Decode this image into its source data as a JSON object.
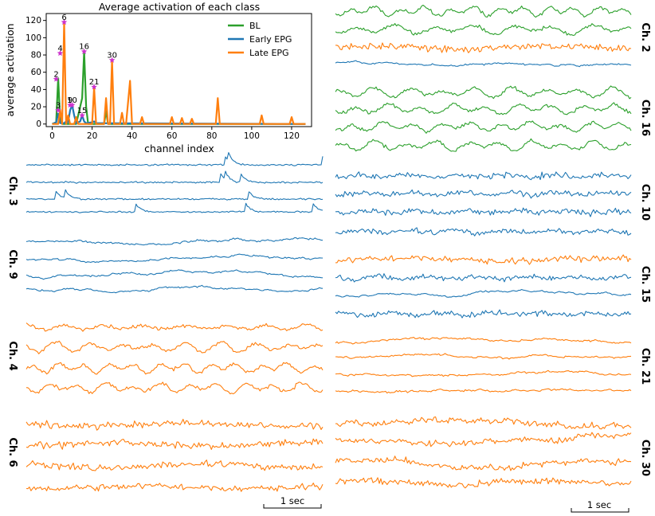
{
  "chart_data": [
    {
      "type": "line",
      "title": "Average activation of each class",
      "xlabel": "channel index",
      "ylabel": "average activation",
      "xlim": [
        -3,
        130
      ],
      "ylim": [
        -3,
        128
      ],
      "xticks": [
        "0",
        "20",
        "40",
        "60",
        "80",
        "100",
        "120"
      ],
      "yticks": [
        "0",
        "20",
        "40",
        "60",
        "80",
        "100",
        "120"
      ],
      "xtick_values": [
        0,
        20,
        40,
        60,
        80,
        100,
        120
      ],
      "ytick_values": [
        0,
        20,
        40,
        60,
        80,
        100,
        120
      ],
      "legend": {
        "placement": "top-right",
        "entries": [
          "BL",
          "Early EPG",
          "Late EPG"
        ]
      },
      "series": [
        {
          "name": "BL",
          "color": "#2ca02c",
          "points": [
            [
              0,
              0
            ],
            [
              2,
              2
            ],
            [
              3,
              53
            ],
            [
              4,
              5
            ],
            [
              5,
              0
            ],
            [
              12,
              0
            ],
            [
              15,
              30
            ],
            [
              16,
              84
            ],
            [
              17,
              20
            ],
            [
              18,
              0
            ],
            [
              26,
              0
            ],
            [
              27,
              15
            ],
            [
              28,
              0
            ],
            [
              127,
              0
            ]
          ]
        },
        {
          "name": "Early EPG",
          "color": "#1f77b4",
          "points": [
            [
              0,
              0
            ],
            [
              2,
              2
            ],
            [
              3,
              12
            ],
            [
              4,
              1
            ],
            [
              6,
              1
            ],
            [
              7,
              3
            ],
            [
              8,
              2
            ],
            [
              9,
              16
            ],
            [
              10,
              22
            ],
            [
              11,
              10
            ],
            [
              12,
              1
            ],
            [
              14,
              3
            ],
            [
              15,
              10
            ],
            [
              16,
              3
            ],
            [
              17,
              1
            ],
            [
              20,
              2
            ],
            [
              21,
              3
            ],
            [
              22,
              1
            ],
            [
              127,
              0
            ]
          ]
        },
        {
          "name": "Late EPG",
          "color": "#ff7f0e",
          "points": [
            [
              0,
              0
            ],
            [
              3,
              0
            ],
            [
              4,
              16
            ],
            [
              5,
              0
            ],
            [
              6,
              118
            ],
            [
              7,
              0
            ],
            [
              8,
              10
            ],
            [
              9,
              0
            ],
            [
              11,
              0
            ],
            [
              12,
              8
            ],
            [
              13,
              0
            ],
            [
              20,
              0
            ],
            [
              21,
              42
            ],
            [
              22,
              0
            ],
            [
              26,
              0
            ],
            [
              27,
              30
            ],
            [
              28,
              0
            ],
            [
              29,
              0
            ],
            [
              30,
              74
            ],
            [
              31,
              0
            ],
            [
              34,
              0
            ],
            [
              35,
              13
            ],
            [
              36,
              0
            ],
            [
              37,
              0
            ],
            [
              39,
              50
            ],
            [
              40,
              0
            ],
            [
              44,
              0
            ],
            [
              45,
              8
            ],
            [
              46,
              0
            ],
            [
              59,
              0
            ],
            [
              60,
              8
            ],
            [
              61,
              0
            ],
            [
              64,
              0
            ],
            [
              65,
              7
            ],
            [
              66,
              0
            ],
            [
              69,
              0
            ],
            [
              70,
              6
            ],
            [
              71,
              0
            ],
            [
              82,
              0
            ],
            [
              83,
              30
            ],
            [
              84,
              0
            ],
            [
              104,
              0
            ],
            [
              105,
              10
            ],
            [
              106,
              0
            ],
            [
              119,
              0
            ],
            [
              120,
              8
            ],
            [
              121,
              0
            ],
            [
              127,
              0
            ]
          ]
        }
      ],
      "markers": [
        {
          "label": "2",
          "x": 2,
          "y": 52
        },
        {
          "label": "3",
          "x": 3,
          "y": 16
        },
        {
          "label": "4",
          "x": 4,
          "y": 82
        },
        {
          "label": "6",
          "x": 6,
          "y": 118
        },
        {
          "label": "9",
          "x": 9,
          "y": 22
        },
        {
          "label": "10",
          "x": 10,
          "y": 22
        },
        {
          "label": "15",
          "x": 15,
          "y": 10
        },
        {
          "label": "16",
          "x": 16,
          "y": 84
        },
        {
          "label": "21",
          "x": 21,
          "y": 43
        },
        {
          "label": "30",
          "x": 30,
          "y": 74
        }
      ],
      "marker_color": "#cc33cc"
    },
    {
      "type": "line",
      "description": "Multichannel time-series trace panels",
      "scale_bar_label": "1 sec",
      "panels": [
        {
          "label": "Ch. 3",
          "color": "#1f77b4",
          "style": "blue-spiky"
        },
        {
          "label": "Ch. 9",
          "color": "#1f77b4",
          "style": "blue-slow"
        },
        {
          "label": "Ch. 4",
          "color": "#ff7f0e",
          "style": "osc"
        },
        {
          "label": "Ch. 6",
          "color": "#ff7f0e",
          "style": "noisy"
        },
        {
          "label": "Ch. 2",
          "color": "#2ca02c",
          "style": "mixed-2"
        },
        {
          "label": "Ch. 16",
          "color": "#2ca02c",
          "style": "osc"
        },
        {
          "label": "Ch. 10",
          "color": "#1f77b4",
          "style": "blue-noisy"
        },
        {
          "label": "Ch. 15",
          "color": "#1f77b4",
          "style": "mixed-15"
        },
        {
          "label": "Ch. 21",
          "color": "#ff7f0e",
          "style": "slow"
        },
        {
          "label": "Ch. 30",
          "color": "#ff7f0e",
          "style": "noisy-big"
        }
      ]
    }
  ]
}
